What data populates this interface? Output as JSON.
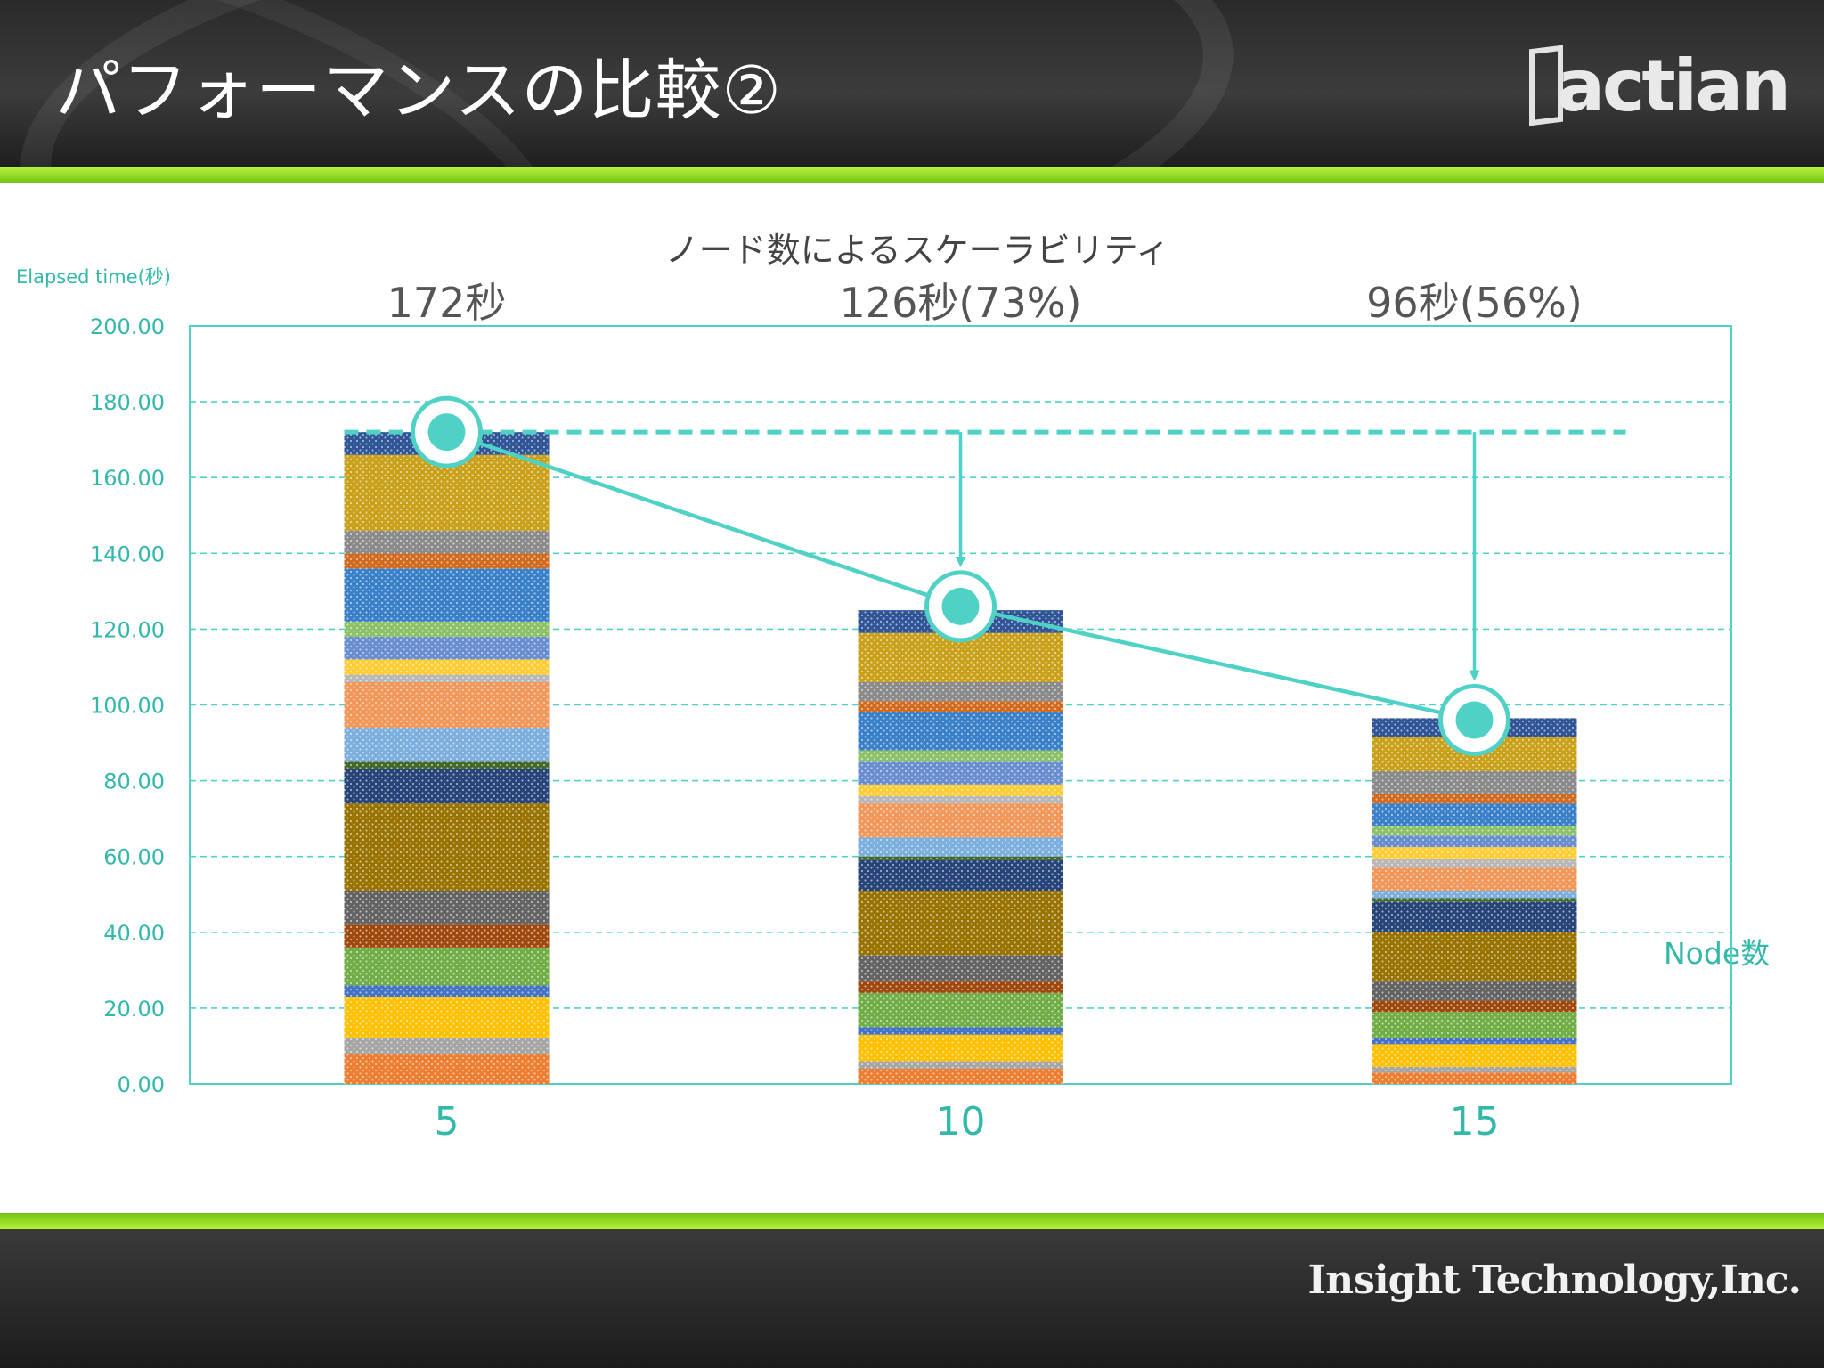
{
  "slide": {
    "title": "パフォーマンスの比較②",
    "logo_text": "actian",
    "company": "Insight Technology,Inc."
  },
  "colors": {
    "accent": "#4fd1c5",
    "axis_text": "#34b8aa",
    "green_band": "#8bd61f",
    "header_bg": "#2f2f2f"
  },
  "chart_data": {
    "type": "bar",
    "stacked": true,
    "title": "ノード数によるスケーラビリティ",
    "ylabel": "Elapsed time(秒)",
    "xlabel": "Node数",
    "categories": [
      "5",
      "10",
      "15"
    ],
    "ylim": [
      0,
      200
    ],
    "yticks": [
      "0.00",
      "20.00",
      "40.00",
      "60.00",
      "80.00",
      "100.00",
      "120.00",
      "140.00",
      "160.00",
      "180.00",
      "200.00"
    ],
    "grid": true,
    "totals": [
      172,
      126,
      96
    ],
    "data_labels": [
      "172秒",
      "126秒(73%)",
      "96秒(56%)"
    ],
    "baseline_value": 172,
    "series": [
      {
        "color": "#ed7d31",
        "values": [
          8,
          4,
          3
        ]
      },
      {
        "color": "#a5a5a5",
        "values": [
          4,
          2,
          1.5
        ]
      },
      {
        "color": "#ffc000",
        "values": [
          11,
          7,
          6
        ]
      },
      {
        "color": "#4472c4",
        "values": [
          3,
          2,
          1.5
        ]
      },
      {
        "color": "#70ad47",
        "values": [
          10,
          9,
          7
        ]
      },
      {
        "color": "#9e480e",
        "values": [
          6,
          3,
          3
        ]
      },
      {
        "color": "#636363",
        "values": [
          9,
          7,
          5
        ]
      },
      {
        "color": "#997300",
        "values": [
          23,
          17,
          13
        ]
      },
      {
        "color": "#264478",
        "values": [
          9,
          8,
          8
        ]
      },
      {
        "color": "#43682b",
        "values": [
          2,
          1,
          1
        ]
      },
      {
        "color": "#7cafdd",
        "values": [
          9,
          5,
          2
        ]
      },
      {
        "color": "#f1975a",
        "values": [
          12,
          9,
          6
        ]
      },
      {
        "color": "#b7b7b7",
        "values": [
          2,
          2,
          2.5
        ]
      },
      {
        "color": "#ffcd33",
        "values": [
          4,
          3,
          3
        ]
      },
      {
        "color": "#698ed0",
        "values": [
          6,
          6,
          3
        ]
      },
      {
        "color": "#8cc168",
        "values": [
          4,
          3,
          2.5
        ]
      },
      {
        "color": "#3a80c8",
        "values": [
          14,
          10,
          6
        ]
      },
      {
        "color": "#d16a1e",
        "values": [
          4,
          3,
          2.5
        ]
      },
      {
        "color": "#8a8a8a",
        "values": [
          6,
          5,
          6
        ]
      },
      {
        "color": "#c9a01a",
        "values": [
          20,
          13,
          9
        ]
      },
      {
        "color": "#2f5597",
        "values": [
          6,
          6,
          5
        ]
      }
    ]
  }
}
